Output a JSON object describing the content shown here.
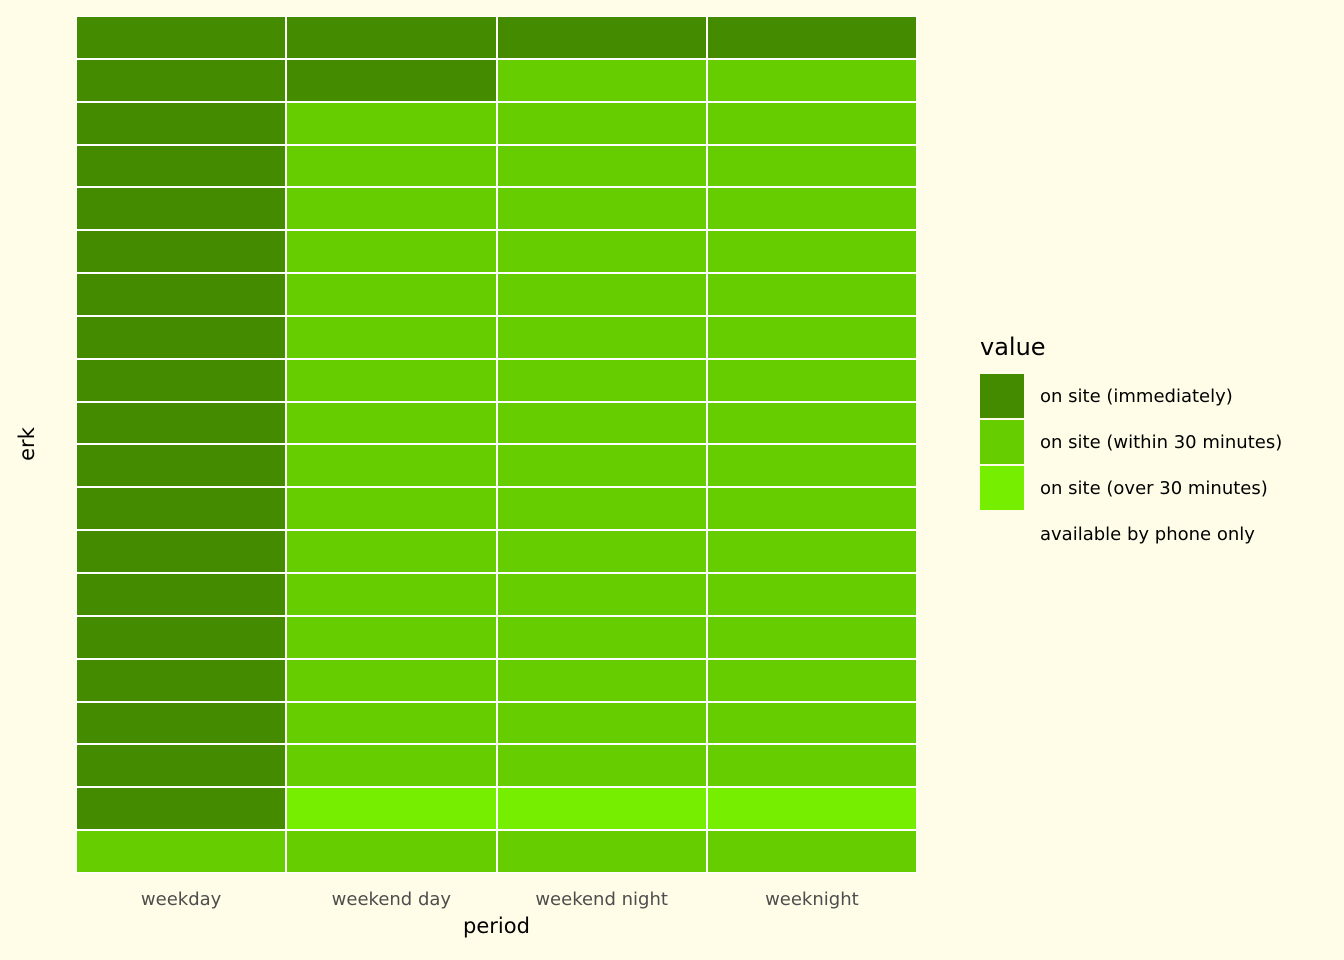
{
  "background_color": "#FFFDE7",
  "chart_data": {
    "type": "heatmap",
    "title": "",
    "xlabel": "period",
    "ylabel": "erk",
    "x_categories": [
      "weekday",
      "weekend day",
      "weekend night",
      "weeknight"
    ],
    "n_rows": 20,
    "n_cols": 4,
    "grid_line_color": "#FFFFFF",
    "tick_label_color": "#4D4D4D",
    "axis_title_color": "#000000",
    "legend": {
      "title": "value",
      "position": "right"
    },
    "value_levels": [
      {
        "key": "I",
        "label": "on site (immediately)",
        "color": "#458B00"
      },
      {
        "key": "W",
        "label": "on site (within 30 minutes)",
        "color": "#66CD00"
      },
      {
        "key": "O",
        "label": "on site (over 30 minutes)",
        "color": "#76EE00"
      },
      {
        "key": "P",
        "label": "available by phone only",
        "color": null
      }
    ],
    "rows": [
      "IIII",
      "IIWW",
      "IWWW",
      "IWWW",
      "IWWW",
      "IWWW",
      "IWWW",
      "IWWW",
      "IWWW",
      "IWWW",
      "IWWW",
      "IWWW",
      "IWWW",
      "IWWW",
      "IWWW",
      "IWWW",
      "IWWW",
      "IWWW",
      "IOOO",
      "WWWW"
    ]
  }
}
